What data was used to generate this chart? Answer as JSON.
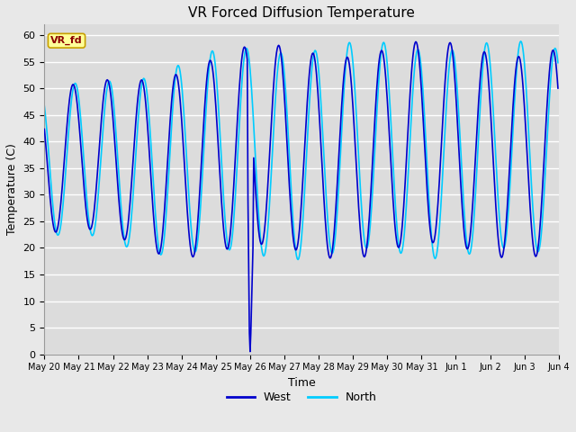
{
  "title": "VR Forced Diffusion Temperature",
  "xlabel": "Time",
  "ylabel": "Temperature (C)",
  "annotation_text": "VR_fd",
  "ylim": [
    0,
    62
  ],
  "yticks": [
    0,
    5,
    10,
    15,
    20,
    25,
    30,
    35,
    40,
    45,
    50,
    55,
    60
  ],
  "west_color": "#0000CD",
  "north_color": "#00CCFF",
  "west_label": "West",
  "north_label": "North",
  "bg_color": "#DCDCDC",
  "grid_color": "#FFFFFF",
  "line_width": 1.2,
  "fig_facecolor": "#E8E8E8"
}
